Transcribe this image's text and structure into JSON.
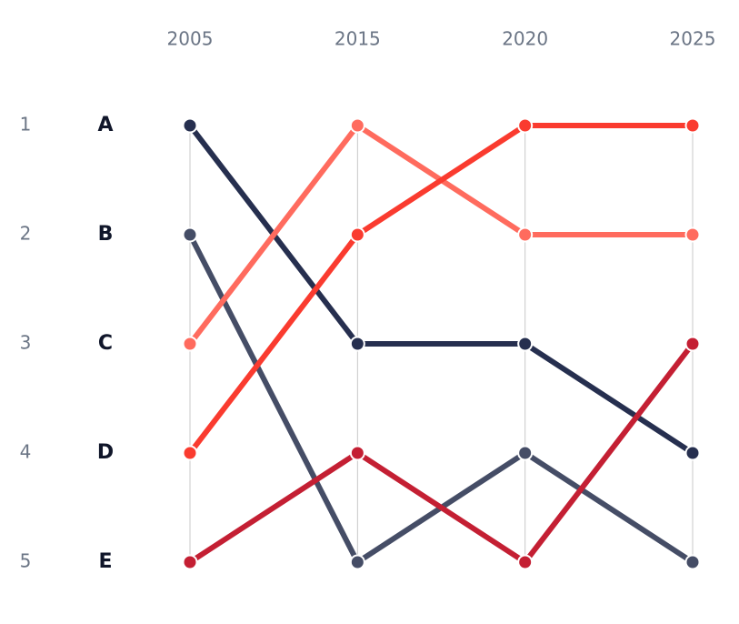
{
  "chart_data": {
    "type": "bump",
    "categories": [
      "2005",
      "2015",
      "2020",
      "2025"
    ],
    "ylim": [
      1,
      5
    ],
    "y_inverted": true,
    "yticks": [
      1,
      2,
      3,
      4,
      5
    ],
    "grid": true,
    "series": [
      {
        "name": "A",
        "color": "#262f4f",
        "values": [
          1,
          3,
          3,
          4
        ]
      },
      {
        "name": "B",
        "color": "#454d66",
        "values": [
          2,
          5,
          4,
          5
        ]
      },
      {
        "name": "C",
        "color": "#ff6b5e",
        "values": [
          3,
          1,
          2,
          2
        ]
      },
      {
        "name": "D",
        "color": "#fa3b2f",
        "values": [
          4,
          2,
          1,
          1
        ]
      },
      {
        "name": "E",
        "color": "#c41f33",
        "values": [
          5,
          4,
          5,
          3
        ]
      }
    ]
  }
}
